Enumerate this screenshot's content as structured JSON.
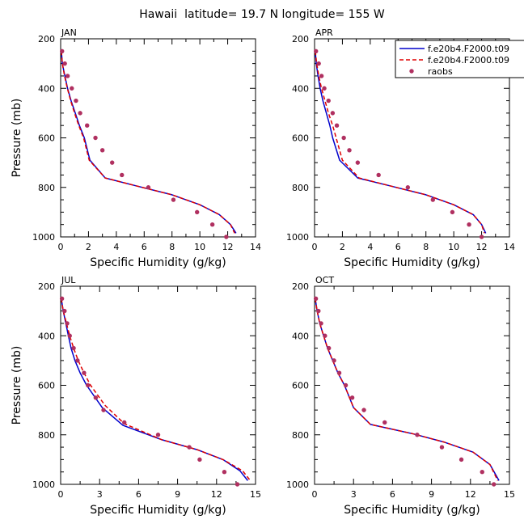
{
  "figure": {
    "title": "Hawaii  latitude= 19.7 N longitude= 155 W"
  },
  "legend": {
    "placement": "top-right",
    "entries": [
      {
        "label": "f.e20b4.F2000.t09",
        "color": "#0000cc",
        "style": "solid"
      },
      {
        "label": "f.e20b4.F2000.t09",
        "color": "#e00000",
        "style": "dashed"
      },
      {
        "label": "raobs",
        "color": "#b03060",
        "style": "dot"
      }
    ]
  },
  "chart_data": [
    {
      "type": "line",
      "title": "JAN",
      "xlabel": "Specific Humidity (g/kg)",
      "ylabel": "Pressure (mb)",
      "xlim": [
        0,
        14
      ],
      "ylim": [
        1000,
        200
      ],
      "y_inverted": true,
      "xticks": [
        0,
        2,
        4,
        6,
        8,
        10,
        12,
        14
      ],
      "xtick_labels": [
        "0",
        "2",
        "4",
        "6",
        "8",
        "10",
        "12",
        "14"
      ],
      "yticks": [
        200,
        400,
        600,
        800,
        1000
      ],
      "ytick_labels": [
        "200",
        "400",
        "600",
        "800",
        "1000"
      ],
      "series": [
        {
          "name": "f.e20b4.F2000.t09",
          "color": "#0000cc",
          "style": "solid",
          "points": [
            [
              0.05,
              250
            ],
            [
              0.12,
              300
            ],
            [
              0.3,
              350
            ],
            [
              0.5,
              400
            ],
            [
              0.75,
              450
            ],
            [
              1.05,
              500
            ],
            [
              1.35,
              550
            ],
            [
              1.7,
              600
            ],
            [
              2.1,
              690
            ],
            [
              3.2,
              762
            ],
            [
              5.5,
              795
            ],
            [
              8.0,
              830
            ],
            [
              10.0,
              870
            ],
            [
              11.4,
              910
            ],
            [
              12.2,
              950
            ],
            [
              12.6,
              985
            ]
          ]
        },
        {
          "name": "f.e20b4.F2000.t09",
          "color": "#e00000",
          "style": "dashed",
          "points": [
            [
              0.05,
              250
            ],
            [
              0.12,
              300
            ],
            [
              0.28,
              350
            ],
            [
              0.48,
              400
            ],
            [
              0.72,
              450
            ],
            [
              1.0,
              500
            ],
            [
              1.3,
              550
            ],
            [
              1.65,
              600
            ],
            [
              2.05,
              690
            ],
            [
              3.2,
              762
            ],
            [
              5.5,
              795
            ],
            [
              8.0,
              830
            ],
            [
              10.0,
              870
            ],
            [
              11.4,
              910
            ],
            [
              12.2,
              950
            ],
            [
              12.5,
              985
            ]
          ]
        },
        {
          "name": "raobs",
          "color": "#b03060",
          "style": "dot",
          "points": [
            [
              0.1,
              250
            ],
            [
              0.3,
              300
            ],
            [
              0.5,
              350
            ],
            [
              0.8,
              400
            ],
            [
              1.1,
              450
            ],
            [
              1.4,
              500
            ],
            [
              1.9,
              550
            ],
            [
              2.5,
              600
            ],
            [
              3.0,
              650
            ],
            [
              3.7,
              700
            ],
            [
              4.4,
              750
            ],
            [
              6.3,
              800
            ],
            [
              8.1,
              850
            ],
            [
              9.8,
              900
            ],
            [
              10.9,
              950
            ],
            [
              11.9,
              1000
            ]
          ]
        }
      ]
    },
    {
      "type": "line",
      "title": "APR",
      "xlabel": "Specific Humidity (g/kg)",
      "ylabel": "",
      "xlim": [
        0,
        14
      ],
      "ylim": [
        1000,
        200
      ],
      "y_inverted": true,
      "xticks": [
        0,
        2,
        4,
        6,
        8,
        10,
        12,
        14
      ],
      "xtick_labels": [
        "0",
        "2",
        "4",
        "6",
        "8",
        "10",
        "12",
        "14"
      ],
      "yticks": [
        200,
        400,
        600,
        800,
        1000
      ],
      "ytick_labels": [
        "200",
        "400",
        "600",
        "800",
        "1000"
      ],
      "series": [
        {
          "name": "f.e20b4.F2000.t09",
          "color": "#0000cc",
          "style": "solid",
          "points": [
            [
              0.05,
              250
            ],
            [
              0.12,
              300
            ],
            [
              0.25,
              350
            ],
            [
              0.4,
              400
            ],
            [
              0.6,
              450
            ],
            [
              0.85,
              500
            ],
            [
              1.1,
              550
            ],
            [
              1.3,
              600
            ],
            [
              1.8,
              690
            ],
            [
              3.1,
              762
            ],
            [
              5.5,
              795
            ],
            [
              8.0,
              830
            ],
            [
              10.0,
              870
            ],
            [
              11.4,
              910
            ],
            [
              12.0,
              950
            ],
            [
              12.3,
              985
            ]
          ]
        },
        {
          "name": "f.e20b4.F2000.t09",
          "color": "#e00000",
          "style": "dashed",
          "points": [
            [
              0.05,
              250
            ],
            [
              0.15,
              300
            ],
            [
              0.3,
              350
            ],
            [
              0.5,
              400
            ],
            [
              0.75,
              450
            ],
            [
              1.0,
              500
            ],
            [
              1.3,
              550
            ],
            [
              1.55,
              600
            ],
            [
              2.0,
              690
            ],
            [
              3.2,
              762
            ],
            [
              5.5,
              795
            ],
            [
              8.0,
              830
            ],
            [
              10.0,
              870
            ],
            [
              11.4,
              910
            ],
            [
              12.0,
              950
            ],
            [
              12.2,
              985
            ]
          ]
        },
        {
          "name": "raobs",
          "color": "#b03060",
          "style": "dot",
          "points": [
            [
              0.1,
              250
            ],
            [
              0.3,
              300
            ],
            [
              0.5,
              350
            ],
            [
              0.7,
              400
            ],
            [
              1.0,
              450
            ],
            [
              1.3,
              500
            ],
            [
              1.6,
              550
            ],
            [
              2.1,
              600
            ],
            [
              2.5,
              650
            ],
            [
              3.1,
              700
            ],
            [
              4.6,
              750
            ],
            [
              6.7,
              800
            ],
            [
              8.5,
              850
            ],
            [
              9.9,
              900
            ],
            [
              11.1,
              950
            ],
            [
              12.0,
              1000
            ]
          ]
        }
      ]
    },
    {
      "type": "line",
      "title": "JUL",
      "xlabel": "Specific Humidity (g/kg)",
      "ylabel": "Pressure (mb)",
      "xlim": [
        0,
        15
      ],
      "ylim": [
        1000,
        200
      ],
      "y_inverted": true,
      "xticks": [
        0,
        3,
        6,
        9,
        12,
        15
      ],
      "xtick_labels": [
        "0",
        "3",
        "6",
        "9",
        "12",
        "15"
      ],
      "yticks": [
        200,
        400,
        600,
        800,
        1000
      ],
      "ytick_labels": [
        "200",
        "400",
        "600",
        "800",
        "1000"
      ],
      "series": [
        {
          "name": "f.e20b4.F2000.t09",
          "color": "#0000cc",
          "style": "solid",
          "points": [
            [
              0.05,
              250
            ],
            [
              0.2,
              300
            ],
            [
              0.4,
              350
            ],
            [
              0.6,
              400
            ],
            [
              0.8,
              450
            ],
            [
              1.1,
              500
            ],
            [
              1.5,
              550
            ],
            [
              2.0,
              600
            ],
            [
              3.2,
              690
            ],
            [
              4.8,
              762
            ],
            [
              7.8,
              820
            ],
            [
              10.5,
              860
            ],
            [
              12.5,
              900
            ],
            [
              13.8,
              945
            ],
            [
              14.4,
              985
            ]
          ]
        },
        {
          "name": "f.e20b4.F2000.t09",
          "color": "#e00000",
          "style": "dashed",
          "points": [
            [
              0.05,
              250
            ],
            [
              0.2,
              300
            ],
            [
              0.45,
              350
            ],
            [
              0.7,
              400
            ],
            [
              1.0,
              450
            ],
            [
              1.35,
              500
            ],
            [
              1.8,
              550
            ],
            [
              2.3,
              600
            ],
            [
              3.4,
              680
            ],
            [
              4.9,
              755
            ],
            [
              7.8,
              820
            ],
            [
              10.5,
              860
            ],
            [
              12.5,
              900
            ],
            [
              14.0,
              945
            ],
            [
              14.6,
              985
            ]
          ]
        },
        {
          "name": "raobs",
          "color": "#b03060",
          "style": "dot",
          "points": [
            [
              0.1,
              250
            ],
            [
              0.3,
              300
            ],
            [
              0.5,
              350
            ],
            [
              0.7,
              400
            ],
            [
              1.0,
              450
            ],
            [
              1.3,
              500
            ],
            [
              1.8,
              550
            ],
            [
              2.1,
              600
            ],
            [
              2.7,
              650
            ],
            [
              3.3,
              700
            ],
            [
              4.9,
              750
            ],
            [
              7.5,
              800
            ],
            [
              9.9,
              850
            ],
            [
              10.7,
              900
            ],
            [
              12.6,
              950
            ],
            [
              13.6,
              1000
            ]
          ]
        }
      ]
    },
    {
      "type": "line",
      "title": "OCT",
      "xlabel": "Specific Humidity (g/kg)",
      "ylabel": "",
      "xlim": [
        0,
        15
      ],
      "ylim": [
        1000,
        200
      ],
      "y_inverted": true,
      "xticks": [
        0,
        3,
        6,
        9,
        12,
        15
      ],
      "xtick_labels": [
        "0",
        "3",
        "6",
        "9",
        "12",
        "15"
      ],
      "yticks": [
        200,
        400,
        600,
        800,
        1000
      ],
      "ytick_labels": [
        "200",
        "400",
        "600",
        "800",
        "1000"
      ],
      "series": [
        {
          "name": "f.e20b4.F2000.t09",
          "color": "#0000cc",
          "style": "solid",
          "points": [
            [
              0.05,
              250
            ],
            [
              0.2,
              300
            ],
            [
              0.4,
              350
            ],
            [
              0.7,
              400
            ],
            [
              1.0,
              450
            ],
            [
              1.4,
              500
            ],
            [
              1.8,
              550
            ],
            [
              2.3,
              600
            ],
            [
              3.0,
              690
            ],
            [
              4.3,
              758
            ],
            [
              7.5,
              795
            ],
            [
              10.0,
              830
            ],
            [
              12.2,
              870
            ],
            [
              13.5,
              920
            ],
            [
              14.2,
              985
            ]
          ]
        },
        {
          "name": "f.e20b4.F2000.t09",
          "color": "#e00000",
          "style": "dashed",
          "points": [
            [
              0.05,
              250
            ],
            [
              0.2,
              300
            ],
            [
              0.4,
              350
            ],
            [
              0.7,
              400
            ],
            [
              1.0,
              450
            ],
            [
              1.4,
              500
            ],
            [
              1.8,
              550
            ],
            [
              2.3,
              600
            ],
            [
              3.0,
              690
            ],
            [
              4.3,
              758
            ],
            [
              7.5,
              795
            ],
            [
              10.0,
              830
            ],
            [
              12.2,
              870
            ],
            [
              13.5,
              920
            ],
            [
              14.1,
              985
            ]
          ]
        },
        {
          "name": "raobs",
          "color": "#b03060",
          "style": "dot",
          "points": [
            [
              0.1,
              250
            ],
            [
              0.3,
              300
            ],
            [
              0.5,
              350
            ],
            [
              0.8,
              400
            ],
            [
              1.1,
              450
            ],
            [
              1.5,
              500
            ],
            [
              1.9,
              550
            ],
            [
              2.4,
              600
            ],
            [
              2.9,
              650
            ],
            [
              3.8,
              700
            ],
            [
              5.4,
              750
            ],
            [
              7.9,
              800
            ],
            [
              9.8,
              850
            ],
            [
              11.3,
              900
            ],
            [
              12.9,
              950
            ],
            [
              13.8,
              1000
            ]
          ]
        }
      ]
    }
  ]
}
